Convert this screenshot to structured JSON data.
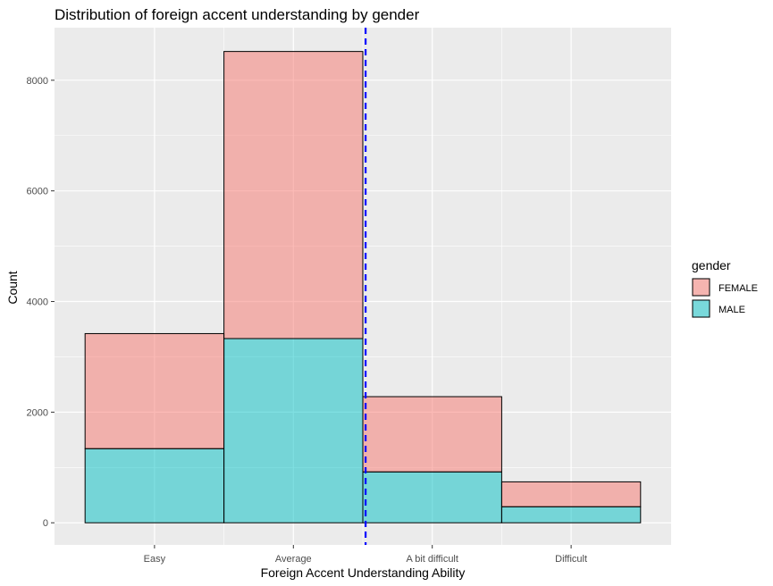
{
  "chart_data": {
    "type": "bar",
    "stacked": true,
    "title": "Distribution of foreign accent understanding by gender",
    "xlabel": "Foreign Accent Understanding Ability",
    "ylabel": "Count",
    "categories": [
      "Easy",
      "Average",
      "A bit difficult",
      "Difficult"
    ],
    "series": [
      {
        "name": "FEMALE",
        "color": "#F8766D",
        "values": [
          2080,
          5190,
          1360,
          450
        ]
      },
      {
        "name": "MALE",
        "color": "#00BFC4",
        "values": [
          1340,
          3330,
          920,
          290
        ]
      }
    ],
    "ylim": [
      -400,
      8950
    ],
    "yticks": [
      0,
      2000,
      4000,
      6000,
      8000
    ],
    "grid": true,
    "panel_background": "#EBEBEB",
    "legend": {
      "title": "gender",
      "position": "right"
    },
    "reference_line": {
      "x_value": 1.52,
      "color": "#0000FF",
      "style": "dashed"
    }
  }
}
